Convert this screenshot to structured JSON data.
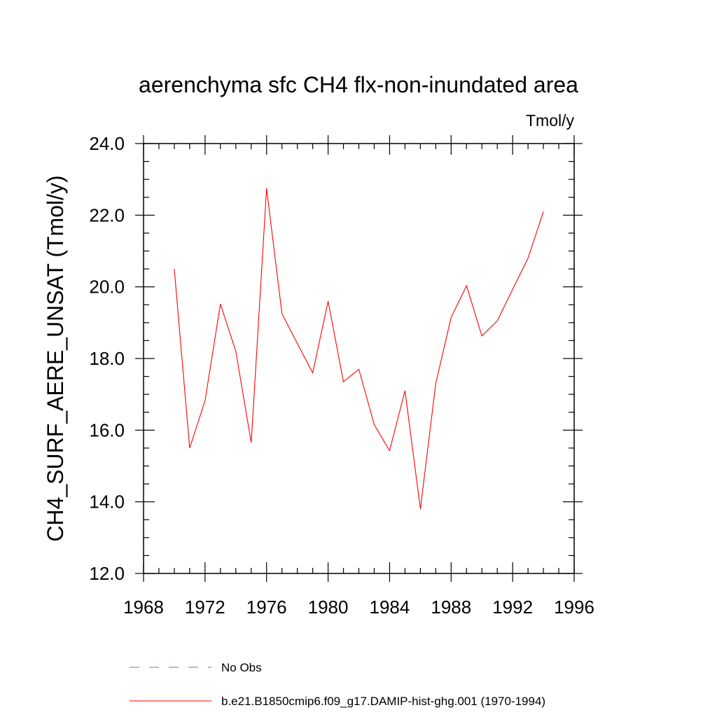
{
  "chart_data": {
    "type": "line",
    "title": "aerenchyma sfc CH4 flx-non-inundated area",
    "units_label": "Tmol/y",
    "xlabel": "",
    "ylabel": "CH4_SURF_AERE_UNSAT  (Tmol/y)",
    "xlim": [
      1968,
      1996
    ],
    "ylim": [
      12.0,
      24.0
    ],
    "x_ticks": [
      1968,
      1972,
      1976,
      1980,
      1984,
      1988,
      1992,
      1996
    ],
    "x_tick_labels": [
      "1968",
      "1972",
      "1976",
      "1980",
      "1984",
      "1988",
      "1992",
      "1996"
    ],
    "y_ticks": [
      12.0,
      14.0,
      16.0,
      18.0,
      20.0,
      22.0,
      24.0
    ],
    "y_tick_labels": [
      "12.0",
      "14.0",
      "16.0",
      "18.0",
      "20.0",
      "22.0",
      "24.0"
    ],
    "grid": false,
    "legend_placement": "bottom",
    "series": [
      {
        "name": "b.e21.B1850cmip6.f09_g17.DAMIP-hist-ghg.001 (1970-1994)",
        "color": "#ff0000",
        "line_style": "solid",
        "x": [
          1970,
          1971,
          1972,
          1973,
          1974,
          1975,
          1976,
          1977,
          1978,
          1979,
          1980,
          1981,
          1982,
          1983,
          1984,
          1985,
          1986,
          1987,
          1988,
          1989,
          1990,
          1991,
          1992,
          1993,
          1994
        ],
        "y": [
          20.5,
          15.5,
          16.83,
          19.52,
          18.2,
          15.65,
          22.75,
          19.25,
          18.42,
          17.6,
          19.6,
          17.35,
          17.7,
          16.15,
          15.43,
          17.1,
          13.8,
          17.3,
          19.15,
          20.03,
          18.63,
          19.05,
          19.93,
          20.8,
          22.1
        ]
      }
    ],
    "legend": [
      {
        "label": "No Obs",
        "color": "#7070c8",
        "line_style": "dashed"
      },
      {
        "label": "b.e21.B1850cmip6.f09_g17.DAMIP-hist-ghg.001 (1970-1994)",
        "color": "#ff0000",
        "line_style": "solid"
      }
    ]
  }
}
